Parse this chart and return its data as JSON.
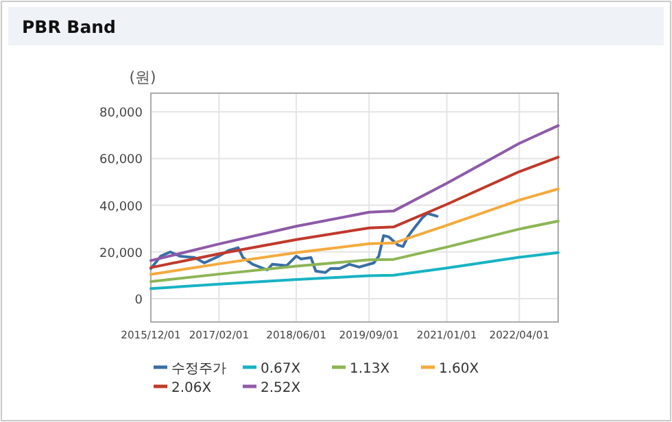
{
  "chart_data": {
    "type": "line",
    "title": "PBR Band",
    "ylabel": "(원)",
    "xlim": [
      "2015-12-01",
      "2022-12-01"
    ],
    "ylim": [
      -10000,
      88000
    ],
    "xticks": [
      {
        "value": "2015-12-01",
        "label": "2015/12/01"
      },
      {
        "value": "2017-02-01",
        "label": "2017/02/01"
      },
      {
        "value": "2018-06-01",
        "label": "2018/06/01"
      },
      {
        "value": "2019-09-01",
        "label": "2019/09/01"
      },
      {
        "value": "2021-01-01",
        "label": "2021/01/01"
      },
      {
        "value": "2022-04-01",
        "label": "2022/04/01"
      }
    ],
    "yticks": [
      0,
      {
        "value": 20000,
        "label": "20,000"
      },
      {
        "value": 40000,
        "label": "40,000"
      },
      {
        "value": 60000,
        "label": "60,000"
      },
      {
        "value": 80000,
        "label": "80,000"
      }
    ],
    "grid": true,
    "legend": "bottom",
    "marker": "none",
    "line_style": "solid",
    "series": [
      {
        "name": "수정주가",
        "color": "#3a6ea5",
        "x": [
          "2015-12",
          "2016-02",
          "2016-04",
          "2016-06",
          "2016-09",
          "2016-11",
          "2017-02",
          "2017-04",
          "2017-06",
          "2017-07",
          "2017-09",
          "2017-12",
          "2018-01",
          "2018-04",
          "2018-06",
          "2018-07",
          "2018-09",
          "2018-10",
          "2018-12",
          "2019-01",
          "2019-03",
          "2019-05",
          "2019-07",
          "2019-10",
          "2019-11",
          "2019-12",
          "2020-01",
          "2020-03",
          "2020-04",
          "2020-05",
          "2020-06",
          "2020-08",
          "2020-09",
          "2020-11"
        ],
        "values": [
          12900,
          18200,
          20000,
          18200,
          17600,
          15300,
          18200,
          20600,
          21800,
          17600,
          14700,
          12300,
          14700,
          14100,
          18200,
          17000,
          17600,
          11800,
          11200,
          12900,
          12900,
          14700,
          13500,
          15300,
          18200,
          27000,
          26500,
          22900,
          22300,
          26500,
          29400,
          34700,
          36500,
          35300
        ]
      },
      {
        "name": "0.67X",
        "color": "#17b3c4",
        "x": [
          "2015-12",
          "2017-02",
          "2018-06",
          "2019-09",
          "2020-02",
          "2021-01",
          "2022-04",
          "2022-12"
        ],
        "values": [
          4300,
          6200,
          8200,
          9800,
          10000,
          13100,
          17700,
          19700
        ]
      },
      {
        "name": "1.13X",
        "color": "#8db554",
        "x": [
          "2015-12",
          "2017-02",
          "2018-06",
          "2019-09",
          "2020-02",
          "2021-01",
          "2022-04",
          "2022-12"
        ],
        "values": [
          7300,
          10500,
          13900,
          16600,
          16800,
          22100,
          29800,
          33200
        ]
      },
      {
        "name": "1.60X",
        "color": "#f4aa3d",
        "x": [
          "2015-12",
          "2017-02",
          "2018-06",
          "2019-09",
          "2020-02",
          "2021-01",
          "2022-04",
          "2022-12"
        ],
        "values": [
          10400,
          14900,
          19700,
          23500,
          23800,
          31400,
          42200,
          47000
        ]
      },
      {
        "name": "2.06X",
        "color": "#c0392b",
        "x": [
          "2015-12",
          "2017-02",
          "2018-06",
          "2019-09",
          "2020-02",
          "2021-01",
          "2022-04",
          "2022-12"
        ],
        "values": [
          13300,
          19200,
          25300,
          30300,
          30700,
          40400,
          54400,
          60600
        ]
      },
      {
        "name": "2.52X",
        "color": "#8e5aa8",
        "x": [
          "2015-12",
          "2017-02",
          "2018-06",
          "2019-09",
          "2020-02",
          "2021-01",
          "2022-04",
          "2022-12"
        ],
        "values": [
          16300,
          23400,
          31000,
          37000,
          37500,
          49400,
          66500,
          74100
        ]
      }
    ]
  }
}
